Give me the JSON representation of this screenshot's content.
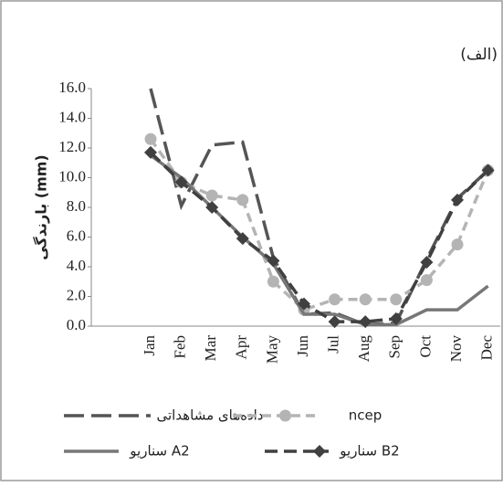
{
  "chart_data": {
    "type": "line",
    "label": "(الف)",
    "y_label": "بارندگی (mm)",
    "categories": [
      "Jan",
      "Feb",
      "Mar",
      "Apr",
      "May",
      "Jun",
      "Jul",
      "Aug",
      "Sep",
      "Oct",
      "Nov",
      "Dec"
    ],
    "series": [
      {
        "name": "داده‌های مشاهداتی",
        "color": "#555555",
        "dash": "22 8",
        "marker": "none",
        "values": [
          16.0,
          8.1,
          12.2,
          12.4,
          4.6,
          0.8,
          0.9,
          0.1,
          0.2,
          4.5,
          8.6,
          10.5
        ]
      },
      {
        "name": "ncep",
        "color": "#b4b4b4",
        "dash": "10 6",
        "marker": "circle",
        "values": [
          12.6,
          9.7,
          8.8,
          8.5,
          3.0,
          1.1,
          1.8,
          1.8,
          1.8,
          3.1,
          5.5,
          10.5
        ]
      },
      {
        "name": "سناریو A2",
        "color": "#777777",
        "dash": "none",
        "marker": "none",
        "values": [
          11.5,
          10.0,
          8.0,
          6.0,
          4.2,
          0.8,
          0.8,
          0.1,
          0.1,
          1.1,
          1.1,
          2.7
        ]
      },
      {
        "name": "سناریو B2",
        "color": "#404040",
        "dash": "14 7",
        "marker": "diamond",
        "values": [
          11.7,
          9.7,
          8.0,
          5.9,
          4.4,
          1.5,
          0.3,
          0.3,
          0.5,
          4.3,
          8.5,
          10.5
        ]
      }
    ],
    "ylim": [
      0,
      16
    ],
    "yticks": [
      {
        "value": 0,
        "label": "0.0"
      },
      {
        "value": 2,
        "label": "2.0"
      },
      {
        "value": 4,
        "label": "4.0"
      },
      {
        "value": 6,
        "label": "6.0"
      },
      {
        "value": 8,
        "label": "8.0"
      },
      {
        "value": 10,
        "label": "10.0"
      },
      {
        "value": 12,
        "label": "12.0"
      },
      {
        "value": 14,
        "label": "14.0"
      },
      {
        "value": 16,
        "label": "16.0"
      }
    ],
    "grid": false
  }
}
